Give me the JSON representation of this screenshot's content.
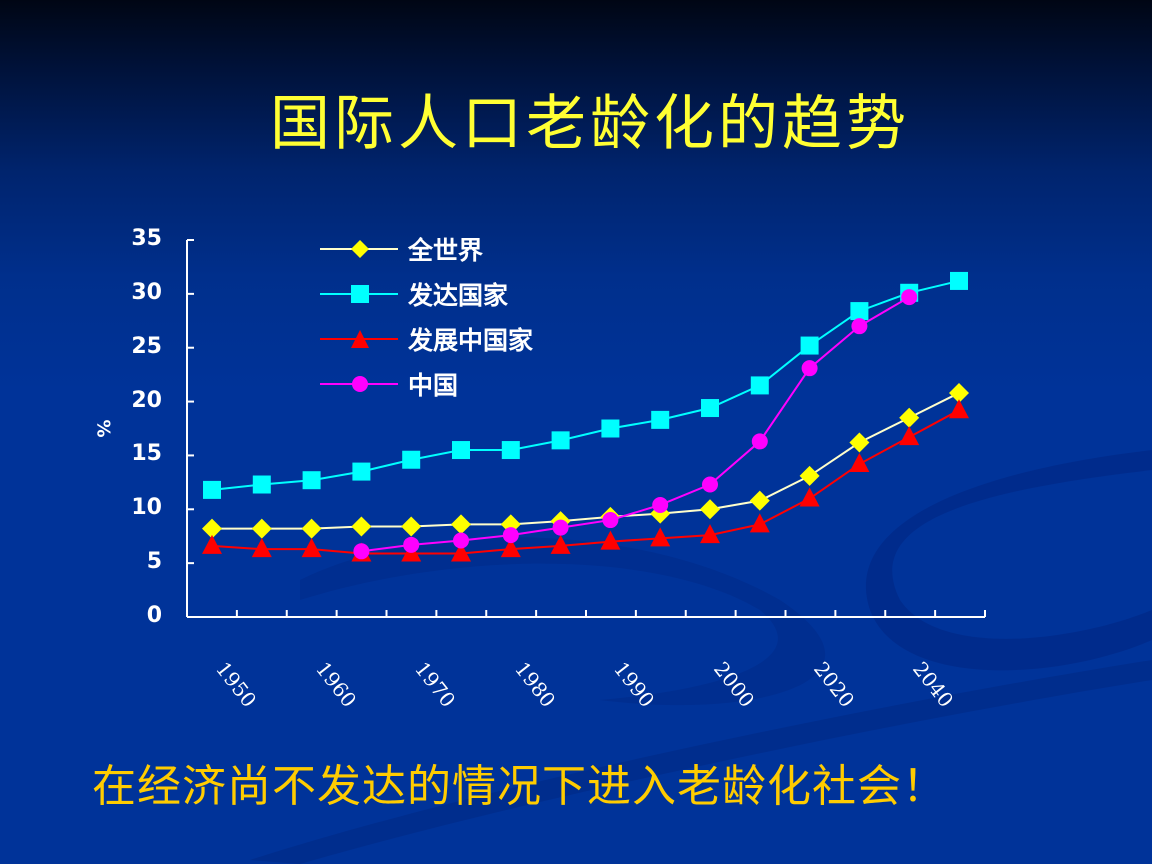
{
  "slide": {
    "title": "国际人口老龄化的趋势",
    "subtitle": "在经济尚不发达的情况下进入老龄化社会！",
    "background_colors": {
      "top": "#000614",
      "bottom": "#003399"
    },
    "title_color": "#ffff33",
    "subtitle_color": "#ffcc00"
  },
  "chart_data": {
    "type": "line",
    "title": "",
    "xlabel": "",
    "ylabel": "%",
    "ylim": [
      0,
      35
    ],
    "yticks": [
      0,
      5,
      10,
      15,
      20,
      25,
      30,
      35
    ],
    "x_tick_labels": [
      "1950",
      "1960",
      "1970",
      "1980",
      "1990",
      "2000",
      "2020",
      "2040"
    ],
    "x": [
      "1950",
      "1955",
      "1960",
      "1965",
      "1970",
      "1975",
      "1980",
      "1985",
      "1990",
      "1995",
      "2000",
      "2010",
      "2020",
      "2030",
      "2040",
      "2050"
    ],
    "grid": false,
    "legend_position": "upper-left (inside plot)",
    "series": [
      {
        "name": "全世界",
        "color": "#ffff00",
        "line_color": "#ffffcc",
        "marker": "diamond",
        "values": [
          8.2,
          8.2,
          8.2,
          8.4,
          8.4,
          8.6,
          8.6,
          8.9,
          9.3,
          9.6,
          10.0,
          10.8,
          13.1,
          16.2,
          18.5,
          20.8
        ]
      },
      {
        "name": "发达国家",
        "color": "#00ffff",
        "line_color": "#00ffff",
        "marker": "square",
        "values": [
          11.8,
          12.3,
          12.7,
          13.5,
          14.6,
          15.5,
          15.5,
          16.4,
          17.5,
          18.3,
          19.4,
          21.5,
          25.2,
          28.4,
          30.1,
          31.2
        ]
      },
      {
        "name": "发展中国家",
        "color": "#ff0000",
        "line_color": "#ff0000",
        "marker": "triangle",
        "values": [
          6.6,
          6.3,
          6.3,
          5.9,
          5.9,
          5.9,
          6.3,
          6.6,
          7.0,
          7.3,
          7.6,
          8.6,
          11.0,
          14.2,
          16.7,
          19.2
        ]
      },
      {
        "name": "中国",
        "color": "#ff00ff",
        "line_color": "#ff00ff",
        "marker": "circle",
        "values": [
          null,
          null,
          null,
          6.1,
          6.7,
          7.1,
          7.6,
          8.3,
          9.0,
          10.4,
          12.3,
          16.3,
          23.1,
          27.0,
          29.7,
          null
        ]
      }
    ]
  }
}
